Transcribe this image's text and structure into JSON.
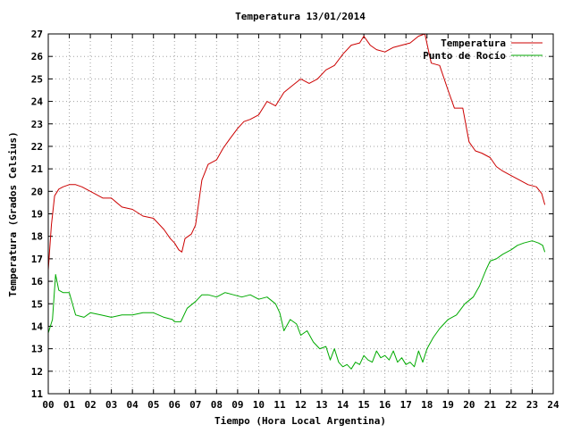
{
  "chart_data": {
    "type": "line",
    "title": "Temperatura 13/01/2014",
    "xlabel": "Tiempo (Hora Local Argentina)",
    "ylabel": "Temperatura (Grados Celsius)",
    "xlim": [
      0,
      24
    ],
    "ylim": [
      11,
      27
    ],
    "grid": true,
    "legend_position": "top-right",
    "x_tick_labels": [
      "00",
      "01",
      "02",
      "03",
      "04",
      "05",
      "06",
      "07",
      "08",
      "09",
      "10",
      "11",
      "12",
      "13",
      "14",
      "15",
      "16",
      "17",
      "18",
      "19",
      "20",
      "21",
      "22",
      "23",
      "24"
    ],
    "y_tick_labels": [
      "11",
      "12",
      "13",
      "14",
      "15",
      "16",
      "17",
      "18",
      "19",
      "20",
      "21",
      "22",
      "23",
      "24",
      "25",
      "26",
      "27"
    ],
    "series": [
      {
        "name": "Temperatura",
        "color": "#cc0000",
        "x": [
          0.0,
          0.15,
          0.3,
          0.5,
          0.7,
          1.0,
          1.3,
          1.6,
          2.0,
          2.6,
          3.0,
          3.5,
          4.0,
          4.5,
          5.0,
          5.5,
          5.8,
          6.0,
          6.2,
          6.35,
          6.5,
          6.8,
          7.0,
          7.3,
          7.6,
          8.0,
          8.3,
          8.6,
          9.0,
          9.3,
          9.6,
          10.0,
          10.4,
          10.8,
          11.2,
          11.6,
          12.0,
          12.4,
          12.8,
          13.2,
          13.6,
          14.0,
          14.4,
          14.8,
          15.0,
          15.3,
          15.6,
          16.0,
          16.4,
          16.8,
          17.2,
          17.6,
          17.9,
          18.2,
          18.6,
          19.0,
          19.3,
          19.7,
          20.0,
          20.3,
          20.6,
          21.0,
          21.3,
          21.6,
          22.0,
          22.4,
          22.8,
          23.2,
          23.45,
          23.6
        ],
        "values": [
          16.5,
          18.5,
          19.8,
          20.1,
          20.2,
          20.3,
          20.3,
          20.2,
          20.0,
          19.7,
          19.7,
          19.3,
          19.2,
          18.9,
          18.8,
          18.3,
          17.9,
          17.7,
          17.4,
          17.3,
          17.9,
          18.1,
          18.5,
          20.5,
          21.2,
          21.4,
          21.9,
          22.3,
          22.8,
          23.1,
          23.2,
          23.4,
          24.0,
          23.8,
          24.4,
          24.7,
          25.0,
          24.8,
          25.0,
          25.4,
          25.6,
          26.1,
          26.5,
          26.6,
          26.9,
          26.5,
          26.3,
          26.2,
          26.4,
          26.5,
          26.6,
          26.9,
          27.0,
          25.7,
          25.6,
          24.5,
          23.7,
          23.7,
          22.2,
          21.8,
          21.7,
          21.5,
          21.1,
          20.9,
          20.7,
          20.5,
          20.3,
          20.2,
          19.9,
          19.4
        ]
      },
      {
        "name": "Punto de Rocío",
        "color": "#00aa00",
        "x": [
          0.0,
          0.2,
          0.35,
          0.5,
          0.7,
          1.0,
          1.3,
          1.7,
          2.0,
          2.5,
          3.0,
          3.5,
          4.0,
          4.5,
          5.0,
          5.5,
          5.9,
          6.0,
          6.3,
          6.6,
          7.0,
          7.3,
          7.6,
          8.0,
          8.4,
          8.8,
          9.2,
          9.6,
          10.0,
          10.4,
          10.8,
          11.0,
          11.2,
          11.5,
          11.8,
          12.0,
          12.3,
          12.6,
          12.9,
          13.2,
          13.4,
          13.6,
          13.8,
          14.0,
          14.2,
          14.4,
          14.6,
          14.8,
          15.0,
          15.2,
          15.4,
          15.6,
          15.8,
          16.0,
          16.2,
          16.4,
          16.6,
          16.8,
          17.0,
          17.2,
          17.4,
          17.6,
          17.8,
          18.0,
          18.3,
          18.6,
          19.0,
          19.4,
          19.8,
          20.2,
          20.5,
          20.8,
          21.0,
          21.3,
          21.6,
          22.0,
          22.3,
          22.6,
          23.0,
          23.3,
          23.5,
          23.6
        ],
        "values": [
          13.7,
          14.3,
          16.3,
          15.6,
          15.5,
          15.5,
          14.5,
          14.4,
          14.6,
          14.5,
          14.4,
          14.5,
          14.5,
          14.6,
          14.6,
          14.4,
          14.3,
          14.2,
          14.2,
          14.8,
          15.1,
          15.4,
          15.4,
          15.3,
          15.5,
          15.4,
          15.3,
          15.4,
          15.2,
          15.3,
          15.0,
          14.6,
          13.8,
          14.3,
          14.1,
          13.6,
          13.8,
          13.3,
          13.0,
          13.1,
          12.5,
          13.0,
          12.4,
          12.2,
          12.3,
          12.1,
          12.4,
          12.3,
          12.7,
          12.5,
          12.4,
          12.9,
          12.6,
          12.7,
          12.5,
          12.9,
          12.4,
          12.6,
          12.3,
          12.4,
          12.2,
          12.9,
          12.4,
          13.0,
          13.5,
          13.9,
          14.3,
          14.5,
          15.0,
          15.3,
          15.8,
          16.5,
          16.9,
          17.0,
          17.2,
          17.4,
          17.6,
          17.7,
          17.8,
          17.7,
          17.6,
          17.3
        ]
      }
    ]
  }
}
